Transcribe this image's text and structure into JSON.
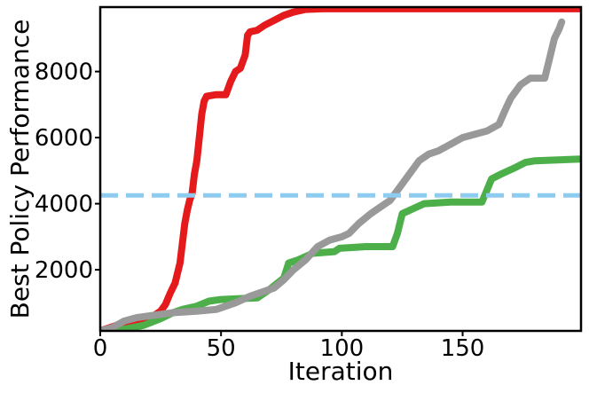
{
  "chart_data": {
    "type": "line",
    "xlabel": "Iteration",
    "ylabel": "Best Policy Performance",
    "xlim": [
      0,
      199
    ],
    "ylim": [
      150,
      9950
    ],
    "x_ticks": [
      0,
      50,
      100,
      150
    ],
    "y_ticks": [
      2000,
      4000,
      6000,
      8000
    ],
    "grid": false,
    "legend": "none",
    "reference_line": {
      "y": 4250,
      "color": "#8ecbf0",
      "style": "dashed"
    },
    "series": [
      {
        "color": "#e41a1c",
        "points": [
          [
            0,
            150
          ],
          [
            4,
            250
          ],
          [
            8,
            350
          ],
          [
            12,
            420
          ],
          [
            16,
            460
          ],
          [
            20,
            500
          ],
          [
            22,
            600
          ],
          [
            25,
            750
          ],
          [
            27,
            950
          ],
          [
            29,
            1300
          ],
          [
            31,
            1600
          ],
          [
            33,
            2200
          ],
          [
            34,
            2800
          ],
          [
            35,
            3400
          ],
          [
            36,
            3800
          ],
          [
            37,
            4100
          ],
          [
            38,
            4300
          ],
          [
            39,
            4900
          ],
          [
            40,
            5300
          ],
          [
            41,
            6000
          ],
          [
            42,
            6700
          ],
          [
            43,
            7100
          ],
          [
            44,
            7250
          ],
          [
            48,
            7300
          ],
          [
            52,
            7300
          ],
          [
            54,
            7700
          ],
          [
            56,
            8000
          ],
          [
            58,
            8100
          ],
          [
            60,
            8500
          ],
          [
            61,
            9100
          ],
          [
            62,
            9200
          ],
          [
            65,
            9250
          ],
          [
            68,
            9400
          ],
          [
            72,
            9550
          ],
          [
            76,
            9700
          ],
          [
            80,
            9800
          ],
          [
            85,
            9880
          ],
          [
            92,
            9900
          ],
          [
            199,
            9900
          ]
        ]
      },
      {
        "color": "#4daf4a",
        "points": [
          [
            0,
            150
          ],
          [
            10,
            200
          ],
          [
            18,
            320
          ],
          [
            25,
            520
          ],
          [
            30,
            700
          ],
          [
            34,
            800
          ],
          [
            40,
            900
          ],
          [
            45,
            1050
          ],
          [
            50,
            1100
          ],
          [
            65,
            1150
          ],
          [
            70,
            1400
          ],
          [
            76,
            1750
          ],
          [
            78,
            2200
          ],
          [
            82,
            2300
          ],
          [
            88,
            2500
          ],
          [
            97,
            2550
          ],
          [
            99,
            2650
          ],
          [
            110,
            2700
          ],
          [
            121,
            2700
          ],
          [
            123,
            3100
          ],
          [
            125,
            3700
          ],
          [
            128,
            3800
          ],
          [
            134,
            4000
          ],
          [
            145,
            4050
          ],
          [
            158,
            4050
          ],
          [
            160,
            4400
          ],
          [
            162,
            4750
          ],
          [
            166,
            4900
          ],
          [
            172,
            5100
          ],
          [
            176,
            5250
          ],
          [
            180,
            5300
          ],
          [
            199,
            5350
          ]
        ]
      },
      {
        "color": "#999999",
        "points": [
          [
            0,
            150
          ],
          [
            5,
            250
          ],
          [
            10,
            450
          ],
          [
            15,
            550
          ],
          [
            20,
            600
          ],
          [
            25,
            650
          ],
          [
            30,
            700
          ],
          [
            40,
            750
          ],
          [
            48,
            800
          ],
          [
            52,
            900
          ],
          [
            56,
            1000
          ],
          [
            62,
            1200
          ],
          [
            68,
            1350
          ],
          [
            72,
            1450
          ],
          [
            76,
            1700
          ],
          [
            80,
            2000
          ],
          [
            85,
            2300
          ],
          [
            90,
            2700
          ],
          [
            95,
            2900
          ],
          [
            100,
            3000
          ],
          [
            103,
            3100
          ],
          [
            107,
            3400
          ],
          [
            112,
            3700
          ],
          [
            116,
            3900
          ],
          [
            120,
            4100
          ],
          [
            124,
            4500
          ],
          [
            128,
            4900
          ],
          [
            132,
            5300
          ],
          [
            136,
            5500
          ],
          [
            140,
            5600
          ],
          [
            145,
            5800
          ],
          [
            150,
            6000
          ],
          [
            155,
            6100
          ],
          [
            160,
            6200
          ],
          [
            165,
            6400
          ],
          [
            168,
            6900
          ],
          [
            170,
            7200
          ],
          [
            174,
            7600
          ],
          [
            178,
            7800
          ],
          [
            184,
            7800
          ],
          [
            186,
            8400
          ],
          [
            188,
            9000
          ],
          [
            190,
            9300
          ],
          [
            191,
            9500
          ]
        ]
      }
    ]
  }
}
